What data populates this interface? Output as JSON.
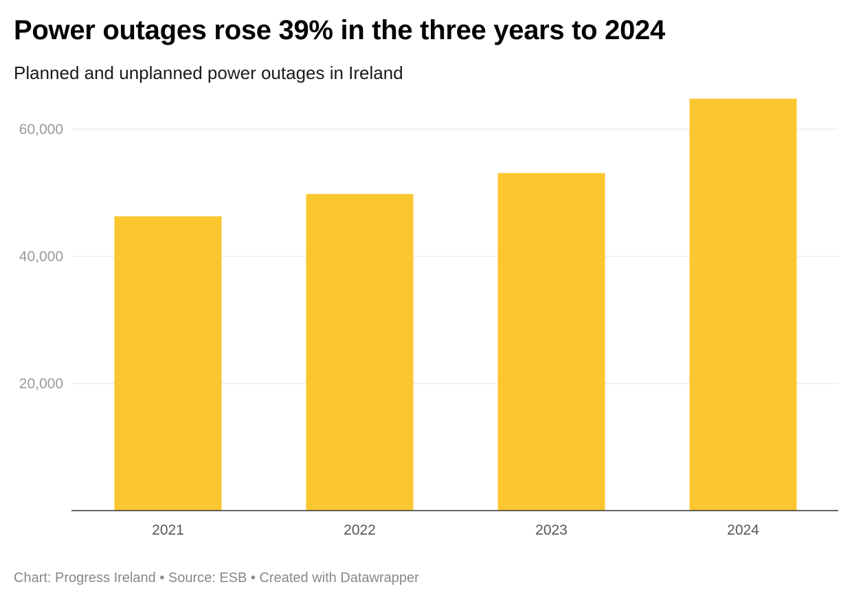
{
  "header": {
    "title": "Power outages rose 39% in the three years to 2024",
    "subtitle": "Planned and unplanned power outages in Ireland"
  },
  "footer": {
    "text": "Chart: Progress Ireland • Source: ESB • Created with Datawrapper"
  },
  "colors": {
    "bar": "#FCC630",
    "grid": "#e2e2e2",
    "axis": "#333333"
  },
  "chart_data": {
    "type": "bar",
    "title": "Power outages rose 39% in the three years to 2024",
    "subtitle": "Planned and unplanned power outages in Ireland",
    "xlabel": "",
    "ylabel": "",
    "categories": [
      "2021",
      "2022",
      "2023",
      "2024"
    ],
    "values": [
      46300,
      49800,
      53100,
      64800
    ],
    "ylim": [
      0,
      65000
    ],
    "yticks": [
      20000,
      40000,
      60000
    ],
    "ytick_labels": [
      "20,000",
      "40,000",
      "60,000"
    ],
    "grid": true
  }
}
